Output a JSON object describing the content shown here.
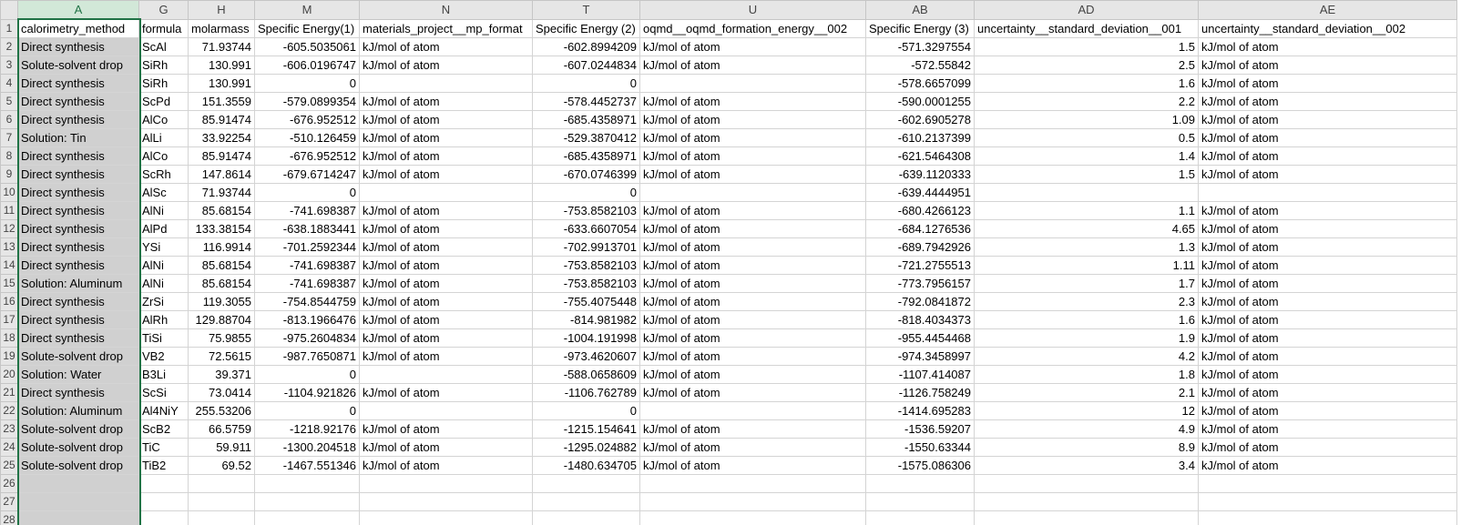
{
  "column_letters": [
    "A",
    "G",
    "H",
    "M",
    "N",
    "T",
    "U",
    "AB",
    "AD",
    "AE"
  ],
  "header_row": [
    "calorimetry_method",
    "formula",
    "molarmass",
    "Specific Energy(1)",
    "materials_project__mp_format",
    "Specific Energy (2)",
    "oqmd__oqmd_formation_energy__002",
    "Specific Energy (3)",
    "uncertainty__standard_deviation__001",
    "uncertainty__standard_deviation__002"
  ],
  "rows": [
    [
      "Direct synthesis",
      "ScAl",
      "71.93744",
      "-605.5035061",
      "kJ/mol of atom",
      "-602.8994209",
      "kJ/mol of atom",
      "-571.3297554",
      "1.5",
      "kJ/mol of atom"
    ],
    [
      "Solute-solvent drop",
      "SiRh",
      "130.991",
      "-606.0196747",
      "kJ/mol of atom",
      "-607.0244834",
      "kJ/mol of atom",
      "-572.55842",
      "2.5",
      "kJ/mol of atom"
    ],
    [
      "Direct synthesis",
      "SiRh",
      "130.991",
      "0",
      "",
      "0",
      "",
      "-578.6657099",
      "1.6",
      "kJ/mol of atom"
    ],
    [
      "Direct synthesis",
      "ScPd",
      "151.3559",
      "-579.0899354",
      "kJ/mol of atom",
      "-578.4452737",
      "kJ/mol of atom",
      "-590.0001255",
      "2.2",
      "kJ/mol of atom"
    ],
    [
      "Direct synthesis",
      "AlCo",
      "85.91474",
      "-676.952512",
      "kJ/mol of atom",
      "-685.4358971",
      "kJ/mol of atom",
      "-602.6905278",
      "1.09",
      "kJ/mol of atom"
    ],
    [
      "Solution: Tin",
      "AlLi",
      "33.92254",
      "-510.126459",
      "kJ/mol of atom",
      "-529.3870412",
      "kJ/mol of atom",
      "-610.2137399",
      "0.5",
      "kJ/mol of atom"
    ],
    [
      "Direct synthesis",
      "AlCo",
      "85.91474",
      "-676.952512",
      "kJ/mol of atom",
      "-685.4358971",
      "kJ/mol of atom",
      "-621.5464308",
      "1.4",
      "kJ/mol of atom"
    ],
    [
      "Direct synthesis",
      "ScRh",
      "147.8614",
      "-679.6714247",
      "kJ/mol of atom",
      "-670.0746399",
      "kJ/mol of atom",
      "-639.1120333",
      "1.5",
      "kJ/mol of atom"
    ],
    [
      "Direct synthesis",
      "AlSc",
      "71.93744",
      "0",
      "",
      "0",
      "",
      "-639.4444951",
      "",
      ""
    ],
    [
      "Direct synthesis",
      "AlNi",
      "85.68154",
      "-741.698387",
      "kJ/mol of atom",
      "-753.8582103",
      "kJ/mol of atom",
      "-680.4266123",
      "1.1",
      "kJ/mol of atom"
    ],
    [
      "Direct synthesis",
      "AlPd",
      "133.38154",
      "-638.1883441",
      "kJ/mol of atom",
      "-633.6607054",
      "kJ/mol of atom",
      "-684.1276536",
      "4.65",
      "kJ/mol of atom"
    ],
    [
      "Direct synthesis",
      "YSi",
      "116.9914",
      "-701.2592344",
      "kJ/mol of atom",
      "-702.9913701",
      "kJ/mol of atom",
      "-689.7942926",
      "1.3",
      "kJ/mol of atom"
    ],
    [
      "Direct synthesis",
      "AlNi",
      "85.68154",
      "-741.698387",
      "kJ/mol of atom",
      "-753.8582103",
      "kJ/mol of atom",
      "-721.2755513",
      "1.11",
      "kJ/mol of atom"
    ],
    [
      "Solution: Aluminum",
      "AlNi",
      "85.68154",
      "-741.698387",
      "kJ/mol of atom",
      "-753.8582103",
      "kJ/mol of atom",
      "-773.7956157",
      "1.7",
      "kJ/mol of atom"
    ],
    [
      "Direct synthesis",
      "ZrSi",
      "119.3055",
      "-754.8544759",
      "kJ/mol of atom",
      "-755.4075448",
      "kJ/mol of atom",
      "-792.0841872",
      "2.3",
      "kJ/mol of atom"
    ],
    [
      "Direct synthesis",
      "AlRh",
      "129.88704",
      "-813.1966476",
      "kJ/mol of atom",
      "-814.981982",
      "kJ/mol of atom",
      "-818.4034373",
      "1.6",
      "kJ/mol of atom"
    ],
    [
      "Direct synthesis",
      "TiSi",
      "75.9855",
      "-975.2604834",
      "kJ/mol of atom",
      "-1004.191998",
      "kJ/mol of atom",
      "-955.4454468",
      "1.9",
      "kJ/mol of atom"
    ],
    [
      "Solute-solvent drop",
      "VB2",
      "72.5615",
      "-987.7650871",
      "kJ/mol of atom",
      "-973.4620607",
      "kJ/mol of atom",
      "-974.3458997",
      "4.2",
      "kJ/mol of atom"
    ],
    [
      "Solution: Water",
      "B3Li",
      "39.371",
      "0",
      "",
      "-588.0658609",
      "kJ/mol of atom",
      "-1107.414087",
      "1.8",
      "kJ/mol of atom"
    ],
    [
      "Direct synthesis",
      "ScSi",
      "73.0414",
      "-1104.921826",
      "kJ/mol of atom",
      "-1106.762789",
      "kJ/mol of atom",
      "-1126.758249",
      "2.1",
      "kJ/mol of atom"
    ],
    [
      "Solution: Aluminum",
      "Al4NiY",
      "255.53206",
      "0",
      "",
      "0",
      "",
      "-1414.695283",
      "12",
      "kJ/mol of atom"
    ],
    [
      "Solute-solvent drop",
      "ScB2",
      "66.5759",
      "-1218.92176",
      "kJ/mol of atom",
      "-1215.154641",
      "kJ/mol of atom",
      "-1536.59207",
      "4.9",
      "kJ/mol of atom"
    ],
    [
      "Solute-solvent drop",
      "TiC",
      "59.911",
      "-1300.204518",
      "kJ/mol of atom",
      "-1295.024882",
      "kJ/mol of atom",
      "-1550.63344",
      "8.9",
      "kJ/mol of atom"
    ],
    [
      "Solute-solvent drop",
      "TiB2",
      "69.52",
      "-1467.551346",
      "kJ/mol of atom",
      "-1480.634705",
      "kJ/mol of atom",
      "-1575.086306",
      "3.4",
      "kJ/mol of atom"
    ]
  ],
  "empty_row_numbers": [
    "26",
    "27",
    "28"
  ]
}
